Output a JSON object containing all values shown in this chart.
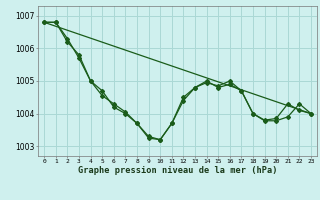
{
  "title": "Graphe pression niveau de la mer (hPa)",
  "background_color": "#cff0ee",
  "grid_color": "#aad8d5",
  "line_color": "#1a5c1a",
  "xlim": [
    -0.5,
    23.5
  ],
  "ylim": [
    1002.7,
    1007.3
  ],
  "yticks": [
    1003,
    1004,
    1005,
    1006,
    1007
  ],
  "xticks": [
    0,
    1,
    2,
    3,
    4,
    5,
    6,
    7,
    8,
    9,
    10,
    11,
    12,
    13,
    14,
    15,
    16,
    17,
    18,
    19,
    20,
    21,
    22,
    23
  ],
  "line1_x": [
    0,
    1,
    2,
    3,
    4,
    5,
    6,
    7,
    8,
    9,
    10,
    11,
    12,
    13,
    14,
    15,
    16,
    17,
    18,
    19,
    20,
    21,
    22,
    23
  ],
  "line1_y": [
    1006.8,
    1006.8,
    1006.3,
    1005.7,
    1005.0,
    1004.7,
    1004.2,
    1004.0,
    1003.7,
    1003.3,
    1003.2,
    1003.7,
    1004.4,
    1004.8,
    1005.0,
    1004.8,
    1004.9,
    1004.7,
    1004.0,
    1003.8,
    1003.85,
    1004.3,
    1004.1,
    1004.0
  ],
  "line2_x": [
    0,
    1,
    2,
    3,
    4,
    5,
    6,
    7,
    8,
    9,
    10,
    11,
    12,
    13,
    14,
    15,
    16,
    17,
    18,
    19,
    20,
    21,
    22,
    23
  ],
  "line2_y": [
    1006.8,
    1006.8,
    1006.2,
    1005.8,
    1005.0,
    1004.55,
    1004.3,
    1004.05,
    1003.7,
    1003.25,
    1003.2,
    1003.7,
    1004.5,
    1004.8,
    1004.95,
    1004.85,
    1005.0,
    1004.7,
    1004.0,
    1003.78,
    1003.78,
    1003.9,
    1004.3,
    1004.0
  ],
  "line3_x": [
    0,
    23
  ],
  "line3_y": [
    1006.8,
    1004.0
  ]
}
